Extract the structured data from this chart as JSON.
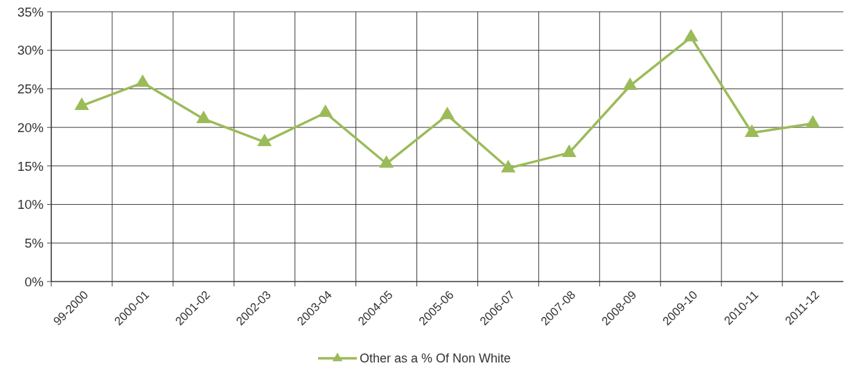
{
  "chart_data": {
    "type": "line",
    "categories": [
      "99-2000",
      "2000-01",
      "2001-02",
      "2002-03",
      "2003-04",
      "2004-05",
      "2005-06",
      "2006-07",
      "2007-08",
      "2008-09",
      "2009-10",
      "2010-11",
      "2011-12"
    ],
    "series": [
      {
        "name": "Other as a % Of Non White",
        "color": "#9bbb59",
        "values": [
          22.8,
          25.8,
          21.1,
          18.1,
          21.9,
          15.3,
          21.6,
          14.7,
          16.7,
          25.4,
          31.7,
          19.3,
          20.5
        ]
      }
    ],
    "ylim": [
      0,
      35
    ],
    "yticks": [
      {
        "value": 0,
        "label": "0%"
      },
      {
        "value": 5,
        "label": "5%"
      },
      {
        "value": 10,
        "label": "10%"
      },
      {
        "value": 15,
        "label": "15%"
      },
      {
        "value": 20,
        "label": "20%"
      },
      {
        "value": 25,
        "label": "25%"
      },
      {
        "value": 30,
        "label": "30%"
      },
      {
        "value": 35,
        "label": "35%"
      }
    ],
    "grid": true,
    "legend": "bottom",
    "marker": "triangle",
    "line_style": "solid"
  }
}
